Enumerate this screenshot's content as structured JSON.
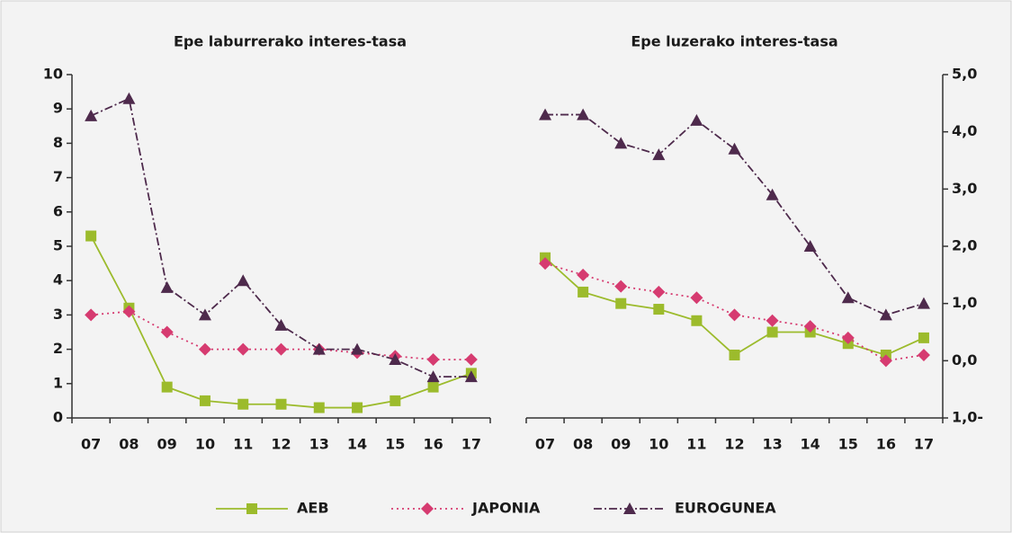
{
  "chart_data": [
    {
      "type": "line",
      "title": "Epe laburrerako interes-tasa",
      "categories": [
        "07",
        "08",
        "09",
        "10",
        "11",
        "12",
        "13",
        "14",
        "15",
        "16",
        "17"
      ],
      "ylim": [
        0,
        10
      ],
      "yticks": [
        0,
        1,
        2,
        3,
        4,
        5,
        6,
        7,
        8,
        9,
        10
      ],
      "y_axis_side": "left",
      "series": [
        {
          "name": "AEB",
          "color": "#9cbb2c",
          "marker": "square",
          "dash": "solid",
          "values": [
            5.3,
            3.2,
            0.9,
            0.5,
            0.4,
            0.4,
            0.3,
            0.3,
            0.5,
            0.9,
            1.3
          ]
        },
        {
          "name": "JAPONIA",
          "color": "#d63b70",
          "marker": "diamond",
          "dash": "dotted",
          "values": [
            3.0,
            3.1,
            2.5,
            2.0,
            2.0,
            2.0,
            2.0,
            1.9,
            1.8,
            1.7,
            1.7
          ]
        },
        {
          "name": "EUROGUNEA",
          "color": "#4e2a4c",
          "marker": "triangle",
          "dash": "dashdot",
          "values": [
            8.8,
            9.3,
            3.8,
            3.0,
            4.0,
            2.7,
            2.0,
            2.0,
            1.7,
            1.2,
            1.2
          ]
        }
      ]
    },
    {
      "type": "line",
      "title": "Epe luzerako interes-tasa",
      "categories": [
        "07",
        "08",
        "09",
        "10",
        "11",
        "12",
        "13",
        "14",
        "15",
        "16",
        "17"
      ],
      "ylim": [
        -1,
        5
      ],
      "y_axis_side": "right",
      "yticks": [
        {
          "value": -1,
          "label": "1,0-"
        },
        {
          "value": 0,
          "label": "0,0"
        },
        {
          "value": 1,
          "label": "1,0"
        },
        {
          "value": 2,
          "label": "2,0"
        },
        {
          "value": 3,
          "label": "3,0"
        },
        {
          "value": 4,
          "label": "4,0"
        },
        {
          "value": 5,
          "label": "5,0"
        }
      ],
      "series": [
        {
          "color": "#9cbb2c",
          "marker": "square",
          "dash": "solid",
          "values": [
            1.8,
            1.2,
            1.0,
            0.9,
            0.7,
            0.1,
            0.5,
            0.5,
            0.3,
            0.1,
            0.4
          ]
        },
        {
          "color": "#d63b70",
          "marker": "diamond",
          "dash": "dotted",
          "values": [
            1.7,
            1.5,
            1.3,
            1.2,
            1.1,
            0.8,
            0.7,
            0.6,
            0.4,
            0.0,
            0.1
          ]
        },
        {
          "color": "#4e2a4c",
          "marker": "triangle",
          "dash": "dashdot",
          "values": [
            4.3,
            4.3,
            3.8,
            3.6,
            4.2,
            3.7,
            2.9,
            2.0,
            1.1,
            0.8,
            1.0
          ]
        }
      ]
    }
  ]
}
